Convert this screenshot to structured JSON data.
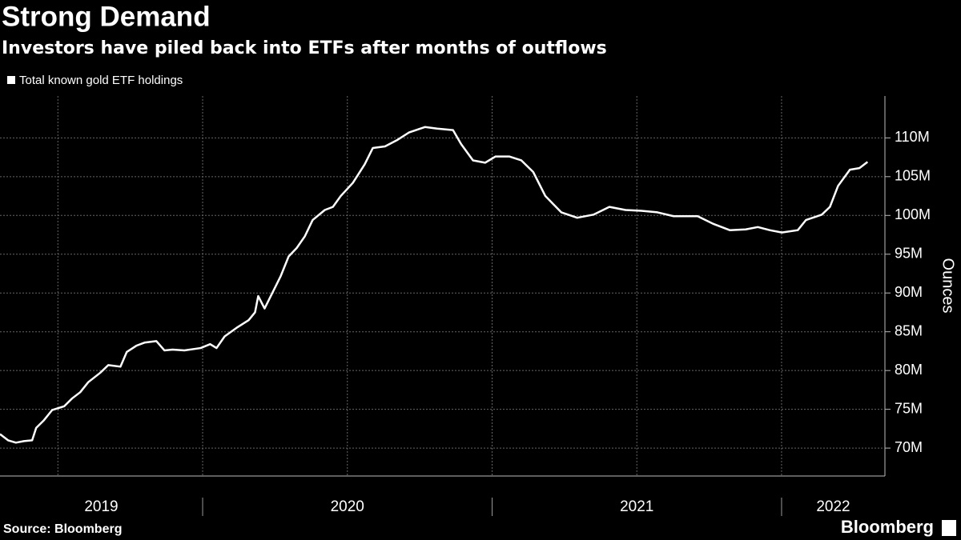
{
  "chart_data": {
    "type": "line",
    "title": "Strong Demand",
    "subtitle": "Investors have piled back into ETFs after months of outflows",
    "y_label": "Ounces",
    "source": "Source: Bloomberg",
    "brand": "Bloomberg",
    "x": [
      2019.3,
      2019.328,
      2019.355,
      2019.383,
      2019.411,
      2019.425,
      2019.452,
      2019.48,
      2019.522,
      2019.549,
      2019.577,
      2019.605,
      2019.646,
      2019.674,
      2019.716,
      2019.738,
      2019.771,
      2019.799,
      2019.84,
      2019.868,
      2019.896,
      2019.937,
      2019.993,
      2020.026,
      2020.048,
      2020.076,
      2020.117,
      2020.159,
      2020.181,
      2020.192,
      2020.214,
      2020.242,
      2020.27,
      2020.297,
      2020.325,
      2020.353,
      2020.38,
      2020.422,
      2020.45,
      2020.477,
      2020.519,
      2020.56,
      2020.588,
      2020.63,
      2020.671,
      2020.713,
      2020.768,
      2020.81,
      2020.865,
      2020.893,
      2020.934,
      2020.976,
      2021.012,
      2021.059,
      2021.101,
      2021.142,
      2021.184,
      2021.239,
      2021.294,
      2021.35,
      2021.405,
      2021.461,
      2021.516,
      2021.571,
      2021.627,
      2021.71,
      2021.765,
      2021.821,
      2021.876,
      2021.918,
      2021.959,
      2022.001,
      2022.056,
      2022.084,
      2022.139,
      2022.167,
      2022.195,
      2022.236,
      2022.269,
      2022.297
    ],
    "series": [
      {
        "name": "Total known gold ETF holdings",
        "color": "#ffffff",
        "values": [
          71.8,
          71.0,
          70.7,
          70.9,
          71.0,
          72.6,
          73.6,
          74.9,
          75.4,
          76.4,
          77.2,
          78.5,
          79.7,
          80.7,
          80.5,
          82.4,
          83.2,
          83.6,
          83.8,
          82.6,
          82.7,
          82.6,
          82.9,
          83.4,
          82.9,
          84.4,
          85.5,
          86.5,
          87.5,
          89.6,
          88.0,
          90.1,
          92.2,
          94.7,
          95.8,
          97.3,
          99.4,
          100.7,
          101.1,
          102.5,
          104.2,
          106.6,
          108.7,
          108.9,
          109.7,
          110.7,
          111.4,
          111.2,
          111.0,
          109.2,
          107.1,
          106.8,
          107.6,
          107.6,
          107.1,
          105.6,
          102.5,
          100.4,
          99.7,
          100.1,
          101.1,
          100.7,
          100.6,
          100.4,
          99.9,
          99.9,
          98.9,
          98.1,
          98.2,
          98.5,
          98.1,
          97.8,
          98.1,
          99.4,
          100.1,
          101.1,
          103.8,
          105.9,
          106.1,
          106.9
        ]
      }
    ],
    "xlim": [
      2019.3,
      2022.357
    ],
    "xticks": [
      {
        "value": 2019,
        "label": "2019"
      },
      {
        "value": 2020,
        "label": "2020"
      },
      {
        "value": 2021,
        "label": "2021"
      },
      {
        "value": 2022,
        "label": "2022"
      }
    ],
    "xgrid_ticks": [
      2019.5,
      2020,
      2020.5,
      2021,
      2021.5,
      2022
    ],
    "ylim": [
      66.4,
      115.4
    ],
    "yticks": [
      {
        "value": 70,
        "label": "70M"
      },
      {
        "value": 75,
        "label": "75M"
      },
      {
        "value": 80,
        "label": "80M"
      },
      {
        "value": 85,
        "label": "85M"
      },
      {
        "value": 90,
        "label": "90M"
      },
      {
        "value": 95,
        "label": "95M"
      },
      {
        "value": 100,
        "label": "100M"
      },
      {
        "value": 105,
        "label": "105M"
      },
      {
        "value": 110,
        "label": "110M"
      }
    ],
    "grid": true
  }
}
